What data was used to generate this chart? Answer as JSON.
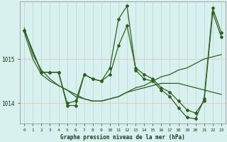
{
  "background_color": "#d8f0ee",
  "grid_color_v": "#c0d8d5",
  "grid_color_h": "#e8c8c8",
  "line_color": "#2d6020",
  "title": "Graphe pression niveau de la mer (hPa)",
  "xlim": [
    -0.5,
    23.5
  ],
  "ylim": [
    1013.55,
    1016.3
  ],
  "yticks": [
    1014,
    1015
  ],
  "xticks": [
    0,
    1,
    2,
    3,
    4,
    5,
    6,
    7,
    8,
    9,
    10,
    11,
    12,
    13,
    14,
    15,
    16,
    17,
    18,
    19,
    20,
    21,
    22,
    23
  ],
  "series": [
    {
      "x": [
        0,
        1,
        2,
        3,
        4,
        5,
        6,
        7,
        8,
        9,
        10,
        11,
        12,
        13,
        14,
        15,
        16,
        17,
        18,
        19,
        20,
        21,
        22,
        23
      ],
      "y": [
        1015.7,
        1015.1,
        1014.75,
        1014.55,
        1014.4,
        1014.3,
        1014.2,
        1014.1,
        1014.05,
        1014.05,
        1014.1,
        1014.15,
        1014.25,
        1014.35,
        1014.4,
        1014.5,
        1014.6,
        1014.65,
        1014.75,
        1014.8,
        1014.9,
        1015.0,
        1015.05,
        1015.1
      ],
      "marker": null,
      "linewidth": 0.9
    },
    {
      "x": [
        0,
        1,
        2,
        3,
        4,
        5,
        6,
        7,
        8,
        9,
        10,
        11,
        12,
        13,
        14,
        15,
        16,
        17,
        18,
        19,
        20,
        21,
        22,
        23
      ],
      "y": [
        1015.6,
        1015.0,
        1014.65,
        1014.5,
        1014.4,
        1014.3,
        1014.15,
        1014.1,
        1014.05,
        1014.05,
        1014.1,
        1014.15,
        1014.25,
        1014.3,
        1014.35,
        1014.4,
        1014.45,
        1014.45,
        1014.45,
        1014.4,
        1014.35,
        1014.3,
        1014.25,
        1014.2
      ],
      "marker": null,
      "linewidth": 0.9
    },
    {
      "x": [
        0,
        2,
        3,
        4,
        5,
        6,
        7,
        8,
        9,
        10,
        11,
        12,
        13,
        14,
        15,
        16,
        17,
        18,
        19,
        20,
        21,
        22,
        23
      ],
      "y": [
        1015.65,
        1014.7,
        1014.7,
        1014.7,
        1014.0,
        1014.05,
        1014.65,
        1014.55,
        1014.5,
        1014.65,
        1015.3,
        1015.75,
        1014.8,
        1014.65,
        1014.55,
        1014.35,
        1014.25,
        1014.05,
        1013.85,
        1013.78,
        1014.05,
        1016.05,
        1015.5
      ],
      "marker": "D",
      "markersize": 2.0,
      "linewidth": 0.9
    },
    {
      "x": [
        0,
        2,
        3,
        4,
        5,
        6,
        7,
        8,
        9,
        10,
        11,
        12,
        13,
        14,
        15,
        16,
        17,
        18,
        19,
        20,
        21,
        22,
        23
      ],
      "y": [
        1015.65,
        1014.7,
        1014.7,
        1014.7,
        1013.95,
        1013.95,
        1014.65,
        1014.55,
        1014.5,
        1014.8,
        1015.9,
        1016.2,
        1014.75,
        1014.55,
        1014.5,
        1014.3,
        1014.15,
        1013.9,
        1013.68,
        1013.65,
        1014.1,
        1016.15,
        1015.6
      ],
      "marker": "D",
      "markersize": 2.0,
      "linewidth": 0.9
    }
  ]
}
